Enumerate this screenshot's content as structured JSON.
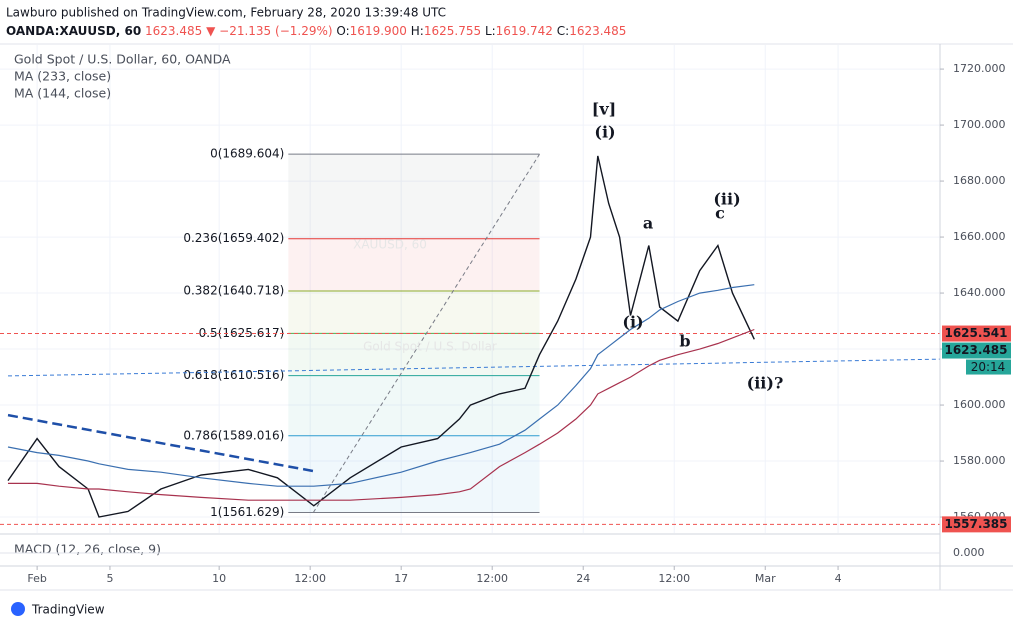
{
  "header": {
    "publish_info": "Lawburo published on TradingView.com, February 28, 2020 13:39:48 UTC",
    "symbol": "OANDA:XAUUSD, 60",
    "last": "1623.485",
    "change": "▼ −21.135 (−1.29%)",
    "ohlc": [
      {
        "label": "O:",
        "value": "1619.900"
      },
      {
        "label": "H:",
        "value": "1625.755"
      },
      {
        "label": "L:",
        "value": "1619.742"
      },
      {
        "label": "C:",
        "value": "1623.485"
      }
    ]
  },
  "footer": {
    "brand": "TradingView"
  },
  "chart_data": {
    "type": "line",
    "title": "Gold Spot / U.S. Dollar, 60, OANDA",
    "watermark": [
      "XAUUSD, 60",
      "Gold Spot / U.S. Dollar"
    ],
    "x": [
      -0.8,
      0,
      0.6,
      1.4,
      1.7,
      2.5,
      3.4,
      4.5,
      5.8,
      6.6,
      7.6,
      8.6,
      10,
      11,
      11.6,
      11.9,
      12.7,
      13.4,
      13.8,
      14.3,
      14.8,
      15.2,
      15.4,
      15.7,
      16,
      16.3,
      16.8,
      17.1,
      17.6,
      18.2,
      18.7,
      19.1,
      19.7
    ],
    "series": [
      {
        "name": "XAUUSD",
        "color": "#131722",
        "values": [
          1573,
          1588,
          1578,
          1570,
          1560,
          1562,
          1570,
          1575,
          1577,
          1574,
          1564,
          1574,
          1585,
          1588,
          1595,
          1600,
          1604,
          1606,
          1618,
          1630,
          1645,
          1660,
          1689,
          1672,
          1660,
          1632,
          1657,
          1635,
          1630,
          1648,
          1657,
          1640,
          1623.485
        ]
      },
      {
        "name": "MA (233, close)",
        "color": "#3a6fb0",
        "values": [
          1585,
          1583,
          1582,
          1580,
          1579,
          1577,
          1576,
          1574,
          1572,
          1571,
          1571,
          1572,
          1576,
          1580,
          1582,
          1583,
          1586,
          1591,
          1595,
          1600,
          1607,
          1613,
          1618,
          1621,
          1624,
          1627,
          1631,
          1634,
          1637,
          1640,
          1641,
          1642,
          1643
        ]
      },
      {
        "name": "MA (144, close)",
        "color": "#a8324e",
        "values": [
          1572,
          1572,
          1571,
          1570,
          1570,
          1569,
          1568,
          1567,
          1566,
          1566,
          1566,
          1566,
          1567,
          1568,
          1569,
          1570,
          1578,
          1583,
          1586,
          1590,
          1595,
          1600,
          1604,
          1606,
          1608,
          1610,
          1614,
          1616,
          1618,
          1620,
          1622,
          1624,
          1627
        ]
      }
    ],
    "xlim": [
      -0.8,
      24.8
    ],
    "xticks": [
      {
        "value": 0,
        "label": "Feb"
      },
      {
        "value": 2,
        "label": "5"
      },
      {
        "value": 5,
        "label": "10"
      },
      {
        "value": 7.5,
        "label": "12:00"
      },
      {
        "value": 10,
        "label": "17"
      },
      {
        "value": 12.5,
        "label": "12:00"
      },
      {
        "value": 15,
        "label": "24"
      },
      {
        "value": 17.5,
        "label": "12:00"
      },
      {
        "value": 20,
        "label": "Mar"
      },
      {
        "value": 22,
        "label": "4"
      }
    ],
    "ylim": [
      1554.3,
      1728.6
    ],
    "yticks": [
      {
        "value": 1560,
        "label": "1560.000"
      },
      {
        "value": 1580,
        "label": "1580.000"
      },
      {
        "value": 1600,
        "label": "1600.000"
      },
      {
        "value": 1620,
        "label": "1620.000"
      },
      {
        "value": 1640,
        "label": "1640.000"
      },
      {
        "value": 1660,
        "label": "1660.000"
      },
      {
        "value": 1680,
        "label": "1680.000"
      },
      {
        "value": 1700,
        "label": "1700.000"
      },
      {
        "value": 1720,
        "label": "1720.000"
      }
    ],
    "grid": true,
    "fib_x": [
      6.9,
      13.8
    ],
    "fib_levels": [
      {
        "label": "0(1689.604)",
        "value": 1689.604,
        "color": "#787b86"
      },
      {
        "label": "0.236(1659.402)",
        "value": 1659.402,
        "color": "#e53935"
      },
      {
        "label": "0.382(1640.718)",
        "value": 1640.718,
        "color": "#8bab2c"
      },
      {
        "label": "0.5(1625.617)",
        "value": 1625.617,
        "color": "#4caf50"
      },
      {
        "label": "0.618(1610.516)",
        "value": 1610.516,
        "color": "#26a69a"
      },
      {
        "label": "0.786(1589.016)",
        "value": 1589.016,
        "color": "#2e9ccf"
      },
      {
        "label": "1(1561.629)",
        "value": 1561.629,
        "color": "#787b86"
      }
    ],
    "trendlines": [
      {
        "color": "#3a7bd5",
        "x": [
          -0.8,
          24.8
        ],
        "values": [
          1610.4,
          1616.4
        ]
      },
      {
        "color": "#1e4fa8",
        "x": [
          -0.8,
          7.6
        ],
        "values": [
          1596.4,
          1576.4
        ]
      }
    ],
    "price_markers": [
      {
        "value": 1625.541,
        "label": "1625.541",
        "color": "#ef5350"
      },
      {
        "value": 1623.485,
        "label": "1623.485",
        "color": "#26a69a"
      },
      {
        "value": 1557.385,
        "label": "1557.385",
        "color": "#ef5350"
      }
    ],
    "countdown": "20:14",
    "annotations": [
      "[v]",
      "(i)",
      "a",
      "(ii)",
      "c",
      "(i)",
      "b",
      "(ii)?"
    ],
    "macd": {
      "name": "MACD (12, 26, close, 9)",
      "yticks": [
        {
          "value": 0,
          "label": "0.000"
        }
      ]
    }
  }
}
